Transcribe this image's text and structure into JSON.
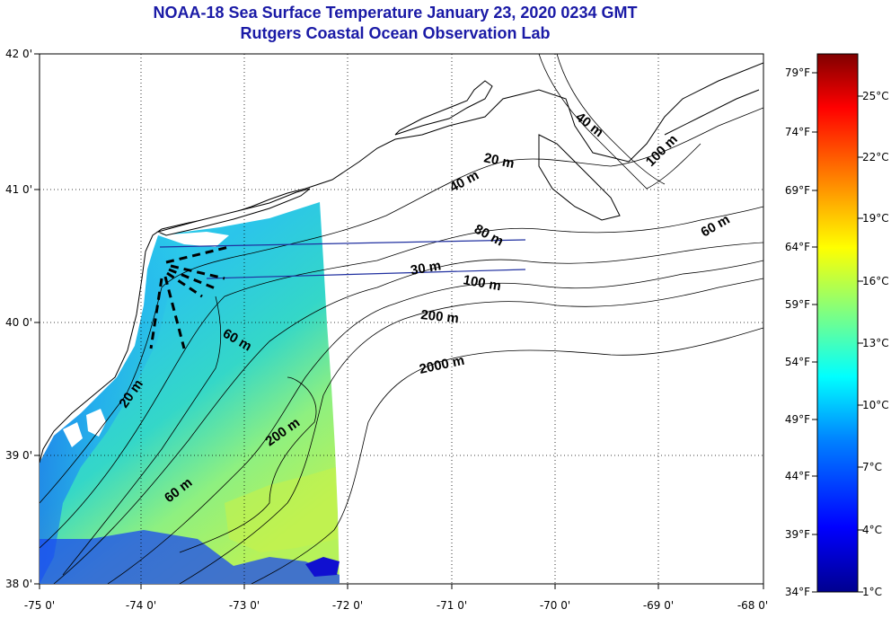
{
  "title": "NOAA-18 Sea Surface Temperature January 23, 2020 0234 GMT",
  "subtitle": "Rutgers Coastal Ocean Observation Lab",
  "lon_ticks": [
    "-75 0'",
    "-74 0'",
    "-73 0'",
    "-72 0'",
    "-71 0'",
    "-70 0'",
    "-69 0'",
    "-68 0'"
  ],
  "lat_ticks": [
    "38 0'",
    "39 0'",
    "40 0'",
    "41 0'",
    "42 0'"
  ],
  "contour_labels": [
    "20 m",
    "40 m",
    "40 m",
    "60 m",
    "60 m",
    "60 m",
    "80 m",
    "100 m",
    "100 m",
    "200 m",
    "200 m",
    "2000 m",
    "20 m",
    "60 m",
    "30 m"
  ],
  "colorbar": {
    "fahrenheit": [
      "79°F",
      "74°F",
      "69°F",
      "64°F",
      "59°F",
      "54°F",
      "49°F",
      "44°F",
      "39°F",
      "34°F"
    ],
    "celsius": [
      "25°C",
      "22°C",
      "19°C",
      "16°C",
      "13°C",
      "10°C",
      "7°C",
      "4°C",
      "1°C"
    ],
    "colors": [
      "#00008f",
      "#0000ff",
      "#0080ff",
      "#00ffff",
      "#80ff80",
      "#ffff00",
      "#ff8000",
      "#ff0000",
      "#800000"
    ]
  },
  "colors": {
    "title": "#1a1aa6",
    "land_fill": "#ffffff",
    "coast": "#000000"
  }
}
